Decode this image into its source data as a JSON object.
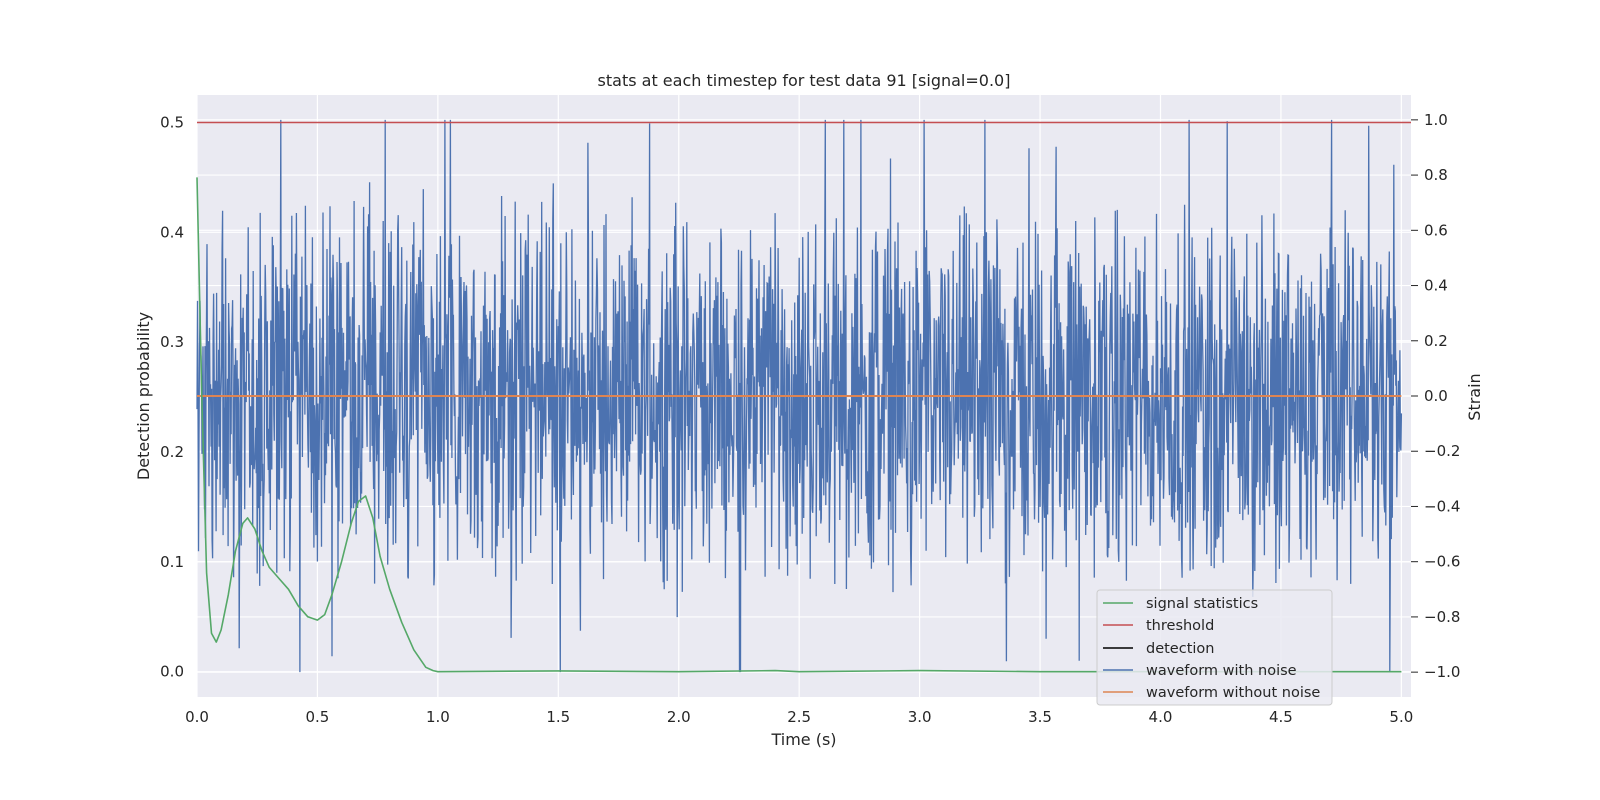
{
  "chart_data": {
    "type": "line",
    "title": "stats at each timestep for test data 91 [signal=0.0]",
    "xlabel": "Time (s)",
    "ylabel": "Detection probability",
    "ylabel_right": "Strain",
    "xlim": [
      0.0,
      5.04
    ],
    "ylim": [
      -0.023,
      0.525
    ],
    "ylim_right": [
      -1.09,
      1.09
    ],
    "x_ticks": [
      "0.0",
      "0.5",
      "1.0",
      "1.5",
      "2.0",
      "2.5",
      "3.0",
      "3.5",
      "4.0",
      "4.5",
      "5.0"
    ],
    "y_ticks": [
      "0.0",
      "0.1",
      "0.2",
      "0.3",
      "0.4",
      "0.5"
    ],
    "y_ticks_right": [
      "−1.0",
      "−0.8",
      "−0.6",
      "−0.4",
      "−0.2",
      "0.0",
      "0.2",
      "0.4",
      "0.6",
      "0.8",
      "1.0"
    ],
    "grid": true,
    "legend_position": "lower-right",
    "series": [
      {
        "name": "signal statistics",
        "axis": "left",
        "color": "#55a868",
        "x": [
          0.0,
          0.02,
          0.04,
          0.06,
          0.08,
          0.1,
          0.13,
          0.16,
          0.19,
          0.21,
          0.24,
          0.27,
          0.3,
          0.34,
          0.38,
          0.42,
          0.46,
          0.5,
          0.53,
          0.56,
          0.6,
          0.64,
          0.67,
          0.7,
          0.73,
          0.76,
          0.8,
          0.85,
          0.9,
          0.95,
          0.98,
          1.0,
          1.5,
          2.0,
          2.4,
          2.5,
          3.0,
          3.5,
          4.0,
          4.5,
          5.0
        ],
        "values": [
          0.45,
          0.25,
          0.09,
          0.035,
          0.027,
          0.038,
          0.07,
          0.11,
          0.135,
          0.14,
          0.13,
          0.11,
          0.095,
          0.085,
          0.075,
          0.06,
          0.05,
          0.047,
          0.052,
          0.07,
          0.1,
          0.135,
          0.155,
          0.16,
          0.14,
          0.105,
          0.075,
          0.045,
          0.02,
          0.004,
          0.001,
          0.0,
          0.0008,
          0.0,
          0.001,
          0.0,
          0.001,
          0.0,
          0.0,
          0.0,
          0.0
        ]
      },
      {
        "name": "threshold",
        "axis": "left",
        "color": "#c44e52",
        "x": [
          0.0,
          5.04
        ],
        "values": [
          0.5,
          0.5
        ]
      },
      {
        "name": "detection",
        "axis": "left",
        "color": "#000000",
        "x": [],
        "values": []
      },
      {
        "name": "waveform with noise",
        "axis": "right",
        "color": "#4c72b0",
        "x_range": [
          0.0,
          5.0
        ],
        "amplitude_range": [
          -1.0,
          1.0
        ],
        "values": []
      },
      {
        "name": "waveform without noise",
        "axis": "right",
        "color": "#dd8452",
        "x": [
          0.0,
          5.0
        ],
        "values": [
          0.0,
          0.0
        ]
      }
    ]
  }
}
